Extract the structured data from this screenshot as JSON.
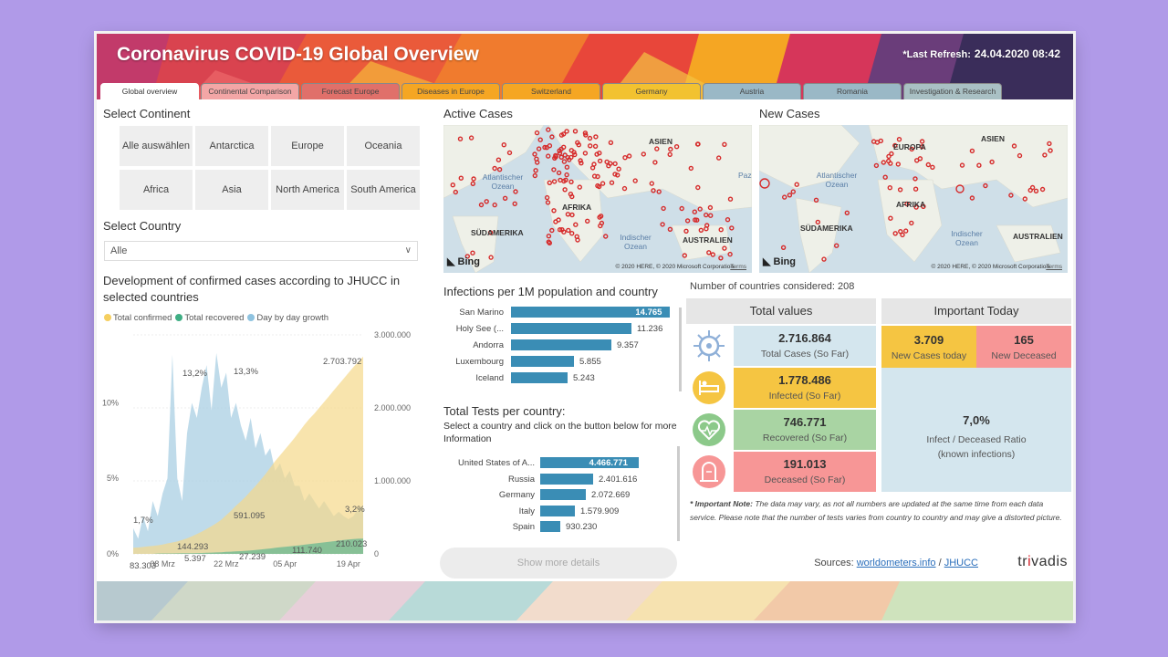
{
  "header": {
    "title": "Coronavirus COVID-19 Global Overview",
    "refresh_label": "*Last Refresh:",
    "refresh_value": "24.04.2020 08:42"
  },
  "tabs": [
    {
      "label": "Global overview",
      "color": "#ffffff"
    },
    {
      "label": "Continental Comparison",
      "color": "#f3a6a6"
    },
    {
      "label": "Forecast Europe",
      "color": "#e0706a"
    },
    {
      "label": "Diseases in Europe",
      "color": "#f5a623"
    },
    {
      "label": "Switzerland",
      "color": "#f5a623"
    },
    {
      "label": "Germany",
      "color": "#f2c230"
    },
    {
      "label": "Austria",
      "color": "#9ab8c6"
    },
    {
      "label": "Romania",
      "color": "#9ab8c6"
    },
    {
      "label": "Investigation & Research",
      "color": "#a9c0c4"
    }
  ],
  "continent": {
    "title": "Select Continent",
    "options": [
      "Alle auswählen",
      "Antarctica",
      "Europe",
      "Oceania",
      "Africa",
      "Asia",
      "North America",
      "South America"
    ]
  },
  "country": {
    "title": "Select Country",
    "selected": "Alle"
  },
  "dev_chart": {
    "title": "Development of confirmed cases according to JHUCC in selected countries",
    "legend": [
      {
        "name": "Total confirmed",
        "color": "#f5cf60"
      },
      {
        "name": "Total recovered",
        "color": "#3fae84"
      },
      {
        "name": "Day by day growth",
        "color": "#8fc3e0"
      }
    ]
  },
  "chart_data": {
    "type": "area",
    "x_ticks": [
      "08 Mrz",
      "22 Mrz",
      "05 Apr",
      "19 Apr"
    ],
    "y_left_ticks": [
      "0%",
      "5%",
      "10%"
    ],
    "y_right_ticks": [
      "0",
      "1.000.000",
      "2.000.000",
      "3.000.000"
    ],
    "y_left_range": [
      0,
      14.5
    ],
    "y_right_range": [
      0,
      3000000
    ],
    "series": [
      {
        "name": "Total confirmed",
        "axis": "right",
        "values": [
          83303,
          88000,
          95000,
          102000,
          110000,
          118000,
          128000,
          144293,
          156000,
          170000,
          190000,
          212000,
          240000,
          272000,
          305000,
          340000,
          380000,
          420000,
          467000,
          530000,
          591095,
          660000,
          720000,
          785000,
          860000,
          930000,
          1010000,
          1090000,
          1180000,
          1270000,
          1350000,
          1430000,
          1510000,
          1590000,
          1680000,
          1770000,
          1850000,
          1920000,
          2000000,
          2080000,
          2160000,
          2240000,
          2320000,
          2400000,
          2480000,
          2560000,
          2630000,
          2703792
        ]
      },
      {
        "name": "Total recovered",
        "axis": "right",
        "values": [
          0,
          0,
          0,
          0,
          0,
          5397,
          5800,
          6200,
          6800,
          7500,
          8200,
          9000,
          10000,
          11500,
          13000,
          15000,
          17500,
          20000,
          23000,
          27239,
          30000,
          34000,
          38000,
          43000,
          48000,
          54000,
          60000,
          67000,
          74000,
          82000,
          90000,
          97000,
          104000,
          111740,
          118000,
          126000,
          134000,
          142000,
          150000,
          158000,
          166000,
          174000,
          182000,
          190000,
          198000,
          204000,
          208000,
          210023
        ]
      },
      {
        "name": "Day by day growth",
        "axis": "left",
        "values": [
          1.7,
          1.0,
          2.5,
          1.5,
          3.5,
          2.5,
          4.0,
          5.0,
          13.2,
          5.0,
          3.5,
          8.0,
          10.0,
          9.0,
          11.0,
          12.5,
          9.5,
          13.3,
          11.0,
          12.0,
          9.0,
          10.0,
          8.5,
          7.5,
          9.0,
          7.0,
          8.0,
          6.5,
          7.0,
          5.5,
          6.0,
          5.0,
          5.5,
          4.5,
          4.5,
          3.5,
          4.0,
          3.5,
          3.0,
          3.5,
          3.0,
          2.5,
          2.8,
          2.5,
          2.3,
          2.5,
          3.0,
          3.2
        ]
      }
    ],
    "annotations": [
      "13,2%",
      "13,3%",
      "1,7%",
      "3,2%",
      "83.303",
      "144.293",
      "591.095",
      "2.703.792",
      "5.397",
      "27.239",
      "111.740",
      "210.023"
    ]
  },
  "maps": {
    "active_title": "Active Cases",
    "new_title": "New Cases",
    "active_labels": {
      "asia": "ASIEN",
      "atlantic": "Atlantischer Ozean",
      "africa": "AFRIKA",
      "south_america": "SÜDAMERIKA",
      "indian": "Indischer Ozean",
      "australia": "AUSTRALIEN",
      "pacific": "Paz"
    },
    "new_labels": {
      "europe": "EUROPA",
      "asia": "ASIEN",
      "atlantic": "Atlantischer Ozean",
      "africa": "AFRIKA",
      "south_america": "SÜDAMERIKA",
      "indian": "Indischer Ozean",
      "australia": "AUSTRALIEN"
    },
    "copyright": "© 2020 HERE, © 2020 Microsoft Corporation",
    "terms": "Terms",
    "bing": "Bing"
  },
  "infections": {
    "title": "Infections per 1M population and country",
    "max": 14765,
    "rows": [
      {
        "label": "San Marino",
        "value": 14765,
        "text": "14.765"
      },
      {
        "label": "Holy See (...",
        "value": 11236,
        "text": "11.236"
      },
      {
        "label": "Andorra",
        "value": 9357,
        "text": "9.357"
      },
      {
        "label": "Luxembourg",
        "value": 5855,
        "text": "5.855"
      },
      {
        "label": "Iceland",
        "value": 5243,
        "text": "5.243"
      }
    ]
  },
  "tests": {
    "title": "Total Tests per country:",
    "subtitle": "Select a country and click on the button below for more Information",
    "max": 4466771,
    "rows": [
      {
        "label": "United States of A...",
        "value": 4466771,
        "text": "4.466.771"
      },
      {
        "label": "Russia",
        "value": 2401616,
        "text": "2.401.616"
      },
      {
        "label": "Germany",
        "value": 2072669,
        "text": "2.072.669"
      },
      {
        "label": "Italy",
        "value": 1579909,
        "text": "1.579.909"
      },
      {
        "label": "Spain",
        "value": 930230,
        "text": "930.230"
      }
    ],
    "button": "Show more details"
  },
  "kpis": {
    "countries_label": "Number of countries considered: 208",
    "total_head": "Total values",
    "today_head": "Important Today",
    "total_cases": {
      "num": "2.716.864",
      "cap": "Total Cases (So Far)"
    },
    "infected": {
      "num": "1.778.486",
      "cap": "Infected (So Far)"
    },
    "recovered": {
      "num": "746.771",
      "cap": "Recovered (So Far)"
    },
    "deceased": {
      "num": "191.013",
      "cap": "Deceased (So Far)"
    },
    "new_cases": {
      "num": "3.709",
      "cap": "New Cases today"
    },
    "new_deceased": {
      "num": "165",
      "cap": "New Deceased"
    },
    "ratio": {
      "num": "7,0%",
      "cap1": "Infect / Deceased Ratio",
      "cap2": "(known infections)"
    }
  },
  "note": {
    "bold": "* Important Note:",
    "text": " The data may vary, as not all numbers are updated at the same time from each data service. Please note that the number of tests varies from country to country and may give a distorted picture."
  },
  "sources": {
    "label": "Sources:",
    "link1": "worldometers.info",
    "sep": "/",
    "link2": "JHUCC"
  },
  "brand": {
    "r1": "tr",
    "mark": "i",
    "r2": "vadis"
  }
}
